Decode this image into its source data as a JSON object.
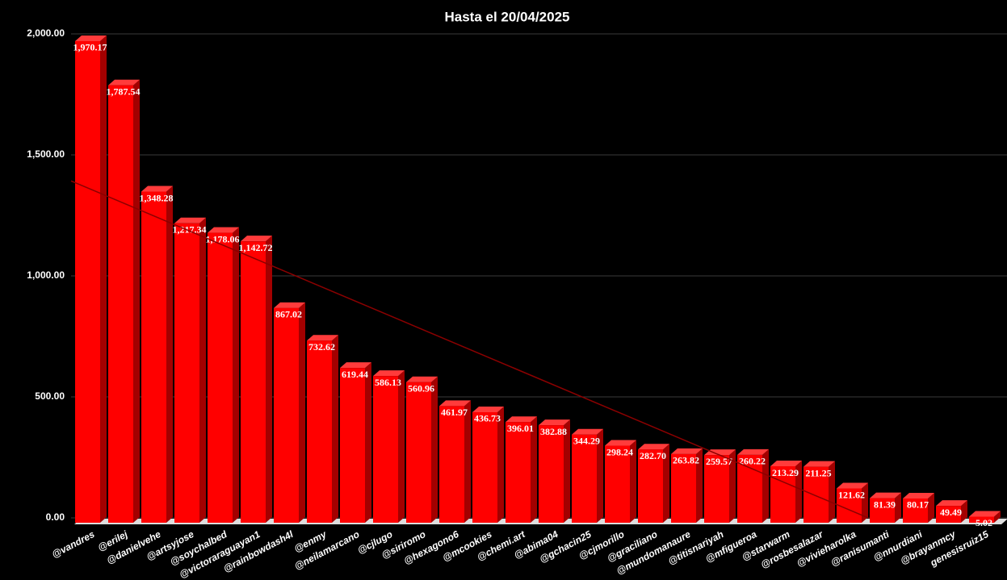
{
  "chart_data": {
    "type": "bar",
    "title": "Hasta el 20/04/2025",
    "categories": [
      "@vandres",
      "@erilej",
      "@danielvehe",
      "@artsyjose",
      "@soychalbed",
      "@victoraraguayan1",
      "@rainbowdash4l",
      "@enmy",
      "@neilamarcano",
      "@cjlugo",
      "@siriromo",
      "@hexagono6",
      "@mcookies",
      "@chemi.art",
      "@abima04",
      "@gchacin25",
      "@cjmorillo",
      "@graciliano",
      "@mundomanaure",
      "@titisnariyah",
      "@mfigueroa",
      "@starwarm",
      "@rosbesalazar",
      "@vivieharolka",
      "@ranisumanti",
      "@nnurdiani",
      "@brayanmcy",
      "genesisruiz15"
    ],
    "values": [
      1970.17,
      1787.54,
      1348.28,
      1217.34,
      1178.06,
      1142.72,
      867.02,
      732.62,
      619.44,
      586.13,
      560.96,
      461.97,
      436.73,
      396.01,
      382.88,
      344.29,
      298.24,
      282.7,
      263.82,
      259.57,
      260.22,
      213.29,
      211.25,
      121.62,
      81.39,
      80.17,
      49.49,
      5.02
    ],
    "value_labels": [
      "1,970.17",
      "1,787.54",
      "1,348.28",
      "1,217.34",
      "1,178.06",
      "1,142.72",
      "867.02",
      "732.62",
      "619.44",
      "586.13",
      "560.96",
      "461.97",
      "436.73",
      "396.01",
      "382.88",
      "344.29",
      "298.24",
      "282.70",
      "263.82",
      "259.57",
      "260.22",
      "213.29",
      "211.25",
      "121.62",
      "81.39",
      "80.17",
      "49.49",
      "5.02"
    ],
    "color": "#ff0000",
    "ylim": [
      0,
      2000
    ],
    "yticks": [
      {
        "value": 0,
        "label": "0.00"
      },
      {
        "value": 500,
        "label": "500.00"
      },
      {
        "value": 1000,
        "label": "1,000.00"
      },
      {
        "value": 1500,
        "label": "1,500.00"
      },
      {
        "value": 2000,
        "label": "2,000.00"
      }
    ],
    "grid": true,
    "trendline": true
  }
}
